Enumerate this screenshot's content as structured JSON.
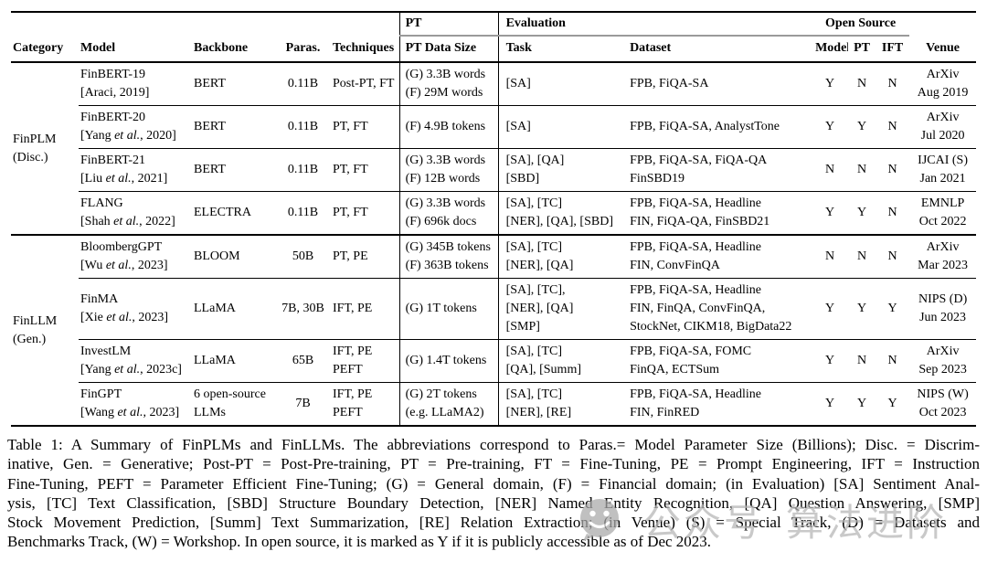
{
  "table": {
    "group_headers": {
      "pt": "PT",
      "evaluation": "Evaluation",
      "open_source": "Open Source"
    },
    "columns": [
      "Category",
      "Model",
      "Backbone",
      "Paras.",
      "Techniques",
      "PT Data Size",
      "Task",
      "Dataset",
      "Model",
      "PT",
      "IFT",
      "Venue"
    ],
    "rule_color": "#000000",
    "cmidrule_color": "#9a9a9a",
    "sections": [
      {
        "category": [
          "FinPLM",
          "(Disc.)"
        ],
        "rows": [
          {
            "model": [
              "FinBERT-19",
              "[Araci, 2019]"
            ],
            "backbone": "BERT",
            "paras": "0.11B",
            "techniques": [
              "Post-PT, FT"
            ],
            "pt_data_size": [
              "(G) 3.3B words",
              "(F) 29M words"
            ],
            "task": [
              "[SA]"
            ],
            "dataset": [
              "FPB, FiQA-SA"
            ],
            "open_source": {
              "model": "Y",
              "pt": "N",
              "ift": "N"
            },
            "venue": [
              "ArXiv",
              "Aug 2019"
            ]
          },
          {
            "model": [
              "FinBERT-20",
              "[Yang et al., 2020]"
            ],
            "backbone": "BERT",
            "paras": "0.11B",
            "techniques": [
              "PT, FT"
            ],
            "pt_data_size": [
              "(F) 4.9B tokens"
            ],
            "task": [
              "[SA]"
            ],
            "dataset": [
              "FPB, FiQA-SA, AnalystTone"
            ],
            "open_source": {
              "model": "Y",
              "pt": "Y",
              "ift": "N"
            },
            "venue": [
              "ArXiv",
              "Jul 2020"
            ]
          },
          {
            "model": [
              "FinBERT-21",
              "[Liu et al., 2021]"
            ],
            "backbone": "BERT",
            "paras": "0.11B",
            "techniques": [
              "PT, FT"
            ],
            "pt_data_size": [
              "(G) 3.3B words",
              "(F) 12B words"
            ],
            "task": [
              "[SA], [QA]",
              "[SBD]"
            ],
            "dataset": [
              "FPB, FiQA-SA, FiQA-QA",
              "FinSBD19"
            ],
            "open_source": {
              "model": "N",
              "pt": "N",
              "ift": "N"
            },
            "venue": [
              "IJCAI (S)",
              "Jan 2021"
            ]
          },
          {
            "model": [
              "FLANG",
              "[Shah et al., 2022]"
            ],
            "backbone": "ELECTRA",
            "paras": "0.11B",
            "techniques": [
              "PT, FT"
            ],
            "pt_data_size": [
              "(G) 3.3B words",
              "(F) 696k docs"
            ],
            "task": [
              "[SA], [TC]",
              "[NER], [QA], [SBD]"
            ],
            "dataset": [
              "FPB, FiQA-SA, Headline",
              "FIN, FiQA-QA, FinSBD21"
            ],
            "open_source": {
              "model": "Y",
              "pt": "Y",
              "ift": "N"
            },
            "venue": [
              "EMNLP",
              "Oct 2022"
            ]
          }
        ]
      },
      {
        "category": [
          "FinLLM",
          "(Gen.)"
        ],
        "rows": [
          {
            "model": [
              "BloombergGPT",
              "[Wu et al., 2023]"
            ],
            "backbone": "BLOOM",
            "paras": "50B",
            "techniques": [
              "PT, PE"
            ],
            "pt_data_size": [
              "(G) 345B tokens",
              "(F) 363B tokens"
            ],
            "task": [
              "[SA], [TC]",
              "[NER], [QA]"
            ],
            "dataset": [
              "FPB, FiQA-SA, Headline",
              "FIN, ConvFinQA"
            ],
            "open_source": {
              "model": "N",
              "pt": "N",
              "ift": "N"
            },
            "venue": [
              "ArXiv",
              "Mar 2023"
            ]
          },
          {
            "model": [
              "FinMA",
              "[Xie et al., 2023]"
            ],
            "backbone": "LLaMA",
            "paras": "7B, 30B",
            "techniques": [
              "IFT, PE"
            ],
            "pt_data_size": [
              "(G) 1T tokens"
            ],
            "task": [
              "[SA], [TC],",
              "[NER], [QA]",
              "[SMP]"
            ],
            "dataset": [
              "FPB, FiQA-SA, Headline",
              "FIN, FinQA, ConvFinQA,",
              "StockNet, CIKM18, BigData22"
            ],
            "open_source": {
              "model": "Y",
              "pt": "Y",
              "ift": "Y"
            },
            "venue": [
              "NIPS (D)",
              "Jun 2023"
            ]
          },
          {
            "model": [
              "InvestLM",
              "[Yang et al., 2023c]"
            ],
            "backbone": "LLaMA",
            "paras": "65B",
            "techniques": [
              "IFT, PE",
              "PEFT"
            ],
            "pt_data_size": [
              "(G) 1.4T tokens"
            ],
            "task": [
              "[SA], [TC]",
              "[QA], [Summ]"
            ],
            "dataset": [
              "FPB, FiQA-SA, FOMC",
              "FinQA, ECTSum"
            ],
            "open_source": {
              "model": "Y",
              "pt": "N",
              "ift": "N"
            },
            "venue": [
              "ArXiv",
              "Sep 2023"
            ]
          },
          {
            "model": [
              "FinGPT",
              "[Wang et al., 2023]"
            ],
            "backbone": [
              "6 open-source",
              "LLMs"
            ],
            "paras": "7B",
            "techniques": [
              "IFT, PE",
              "PEFT"
            ],
            "pt_data_size": [
              "(G) 2T tokens",
              "(e.g. LLaMA2)"
            ],
            "task": [
              "[SA], [TC]",
              "[NER], [RE]"
            ],
            "dataset": [
              "FPB, FiQA-SA, Headline",
              "FIN, FinRED"
            ],
            "open_source": {
              "model": "Y",
              "pt": "Y",
              "ift": "Y"
            },
            "venue": [
              "NIPS (W)",
              "Oct 2023"
            ]
          }
        ]
      }
    ]
  },
  "caption": {
    "lines": [
      "Table 1: A Summary of FinPLMs and FinLLMs. The abbreviations correspond to Paras.= Model Parameter Size (Billions); Disc. = Discrim-",
      "inative, Gen. = Generative; Post-PT = Post-Pre-training, PT = Pre-training, FT = Fine-Tuning, PE = Prompt Engineering, IFT = Instruction",
      "Fine-Tuning, PEFT = Parameter Efficient Fine-Tuning; (G) = General domain, (F) = Financial domain; (in Evaluation) [SA] Sentiment Anal-",
      "ysis, [TC] Text Classification, [SBD] Structure Boundary Detection, [NER] Named Entity Recognition, [QA] Question Answering, [SMP]",
      "Stock Movement Prediction, [Summ] Text Summarization, [RE] Relation Extraction; (in Venue) (S) = Special Track, (D) = Datasets and",
      "Benchmarks Track, (W) = Workshop. In open source, it is marked as Y if it is publicly accessible as of Dec 2023."
    ]
  },
  "watermark": {
    "icon": "chat-smiley-icon",
    "text_left": "公众号",
    "text_right": "算法进阶",
    "color": "#b5b5b5"
  }
}
